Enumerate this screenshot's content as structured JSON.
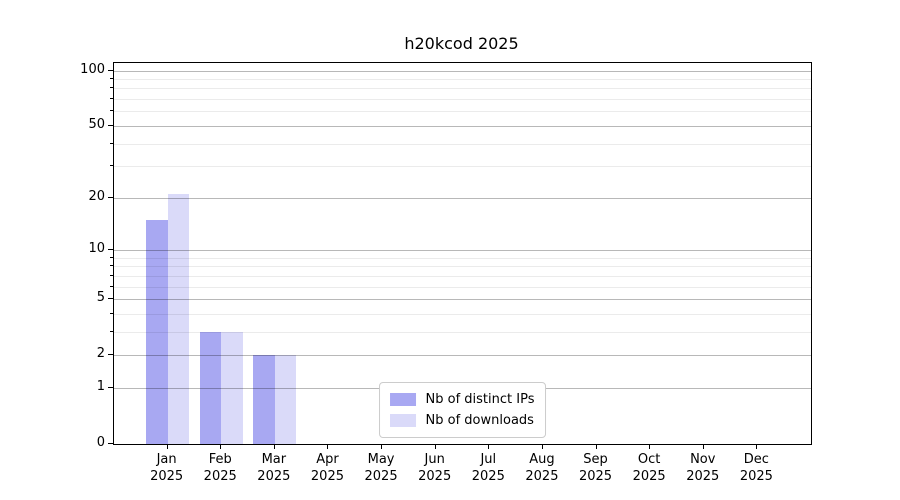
{
  "chart_data": {
    "type": "bar",
    "title": "h20kcod 2025",
    "categories": [
      {
        "month": "Jan",
        "year": "2025"
      },
      {
        "month": "Feb",
        "year": "2025"
      },
      {
        "month": "Mar",
        "year": "2025"
      },
      {
        "month": "Apr",
        "year": "2025"
      },
      {
        "month": "May",
        "year": "2025"
      },
      {
        "month": "Jun",
        "year": "2025"
      },
      {
        "month": "Jul",
        "year": "2025"
      },
      {
        "month": "Aug",
        "year": "2025"
      },
      {
        "month": "Sep",
        "year": "2025"
      },
      {
        "month": "Oct",
        "year": "2025"
      },
      {
        "month": "Nov",
        "year": "2025"
      },
      {
        "month": "Dec",
        "year": "2025"
      }
    ],
    "series": [
      {
        "name": "Nb of distinct IPs",
        "color": "#a8a8f2",
        "values": [
          15,
          3,
          2,
          0,
          0,
          0,
          0,
          0,
          0,
          0,
          0,
          0
        ]
      },
      {
        "name": "Nb of downloads",
        "color": "#dadaf9",
        "values": [
          21,
          3,
          2,
          0,
          0,
          0,
          0,
          0,
          0,
          0,
          0,
          0
        ]
      }
    ],
    "xlabel": "",
    "ylabel": "",
    "y_axis": {
      "scale": "log10(1+v)",
      "major_ticks": [
        0,
        1,
        2,
        5,
        10,
        20,
        50,
        100
      ],
      "minor_ticks": [
        3,
        4,
        6,
        7,
        8,
        9,
        30,
        40,
        60,
        70,
        80,
        90
      ],
      "ylim": [
        0,
        110
      ]
    },
    "grid": true,
    "legend_position": "lower center"
  }
}
